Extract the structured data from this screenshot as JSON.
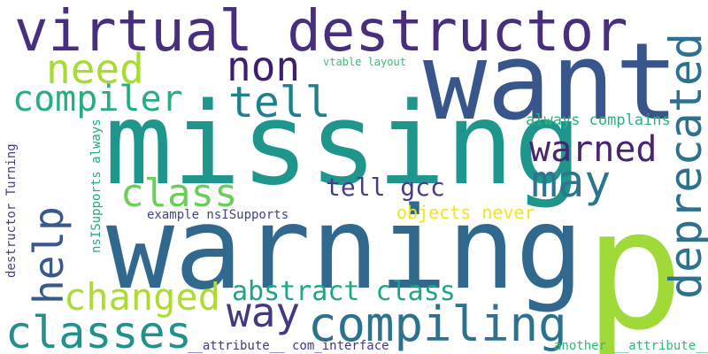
{
  "cloud": {
    "background": "#ffffff",
    "words": [
      {
        "text": "warning",
        "color": "#31688e"
      },
      {
        "text": "missing",
        "color": "#1f968b"
      },
      {
        "text": "want",
        "color": "#39568c"
      },
      {
        "text": "p",
        "color": "#a0da39"
      },
      {
        "text": "virtual destructor",
        "color": "#472f7d"
      },
      {
        "text": "compiling",
        "color": "#2c728e"
      },
      {
        "text": "classes",
        "color": "#21918c"
      },
      {
        "text": "deprecated",
        "color": "#2c728e"
      },
      {
        "text": "non",
        "color": "#3e1f6f"
      },
      {
        "text": "need",
        "color": "#a8db34"
      },
      {
        "text": "tell",
        "color": "#1e7f8e"
      },
      {
        "text": "compiler",
        "color": "#27ad81"
      },
      {
        "text": "class",
        "color": "#6ccd5a"
      },
      {
        "text": "may",
        "color": "#2b758e"
      },
      {
        "text": "warned",
        "color": "#482475"
      },
      {
        "text": "changed",
        "color": "#addc30"
      },
      {
        "text": "way",
        "color": "#453882"
      },
      {
        "text": "help",
        "color": "#38598c"
      },
      {
        "text": "abstract class",
        "color": "#20a486"
      },
      {
        "text": "tell gcc",
        "color": "#433e85"
      },
      {
        "text": "objects never",
        "color": "#f1e51d"
      },
      {
        "text": "always complains",
        "color": "#2db27d"
      },
      {
        "text": "example nsISupports",
        "color": "#414487"
      },
      {
        "text": "vtable layout",
        "color": "#3bbb75"
      },
      {
        "text": "nsISupports always",
        "color": "#23a983"
      },
      {
        "text": "destructor Turning",
        "color": "#433e85"
      },
      {
        "text": "__attribute__ com_interface",
        "color": "#453781"
      },
      {
        "text": "another __attribute__",
        "color": "#35b779"
      }
    ]
  }
}
